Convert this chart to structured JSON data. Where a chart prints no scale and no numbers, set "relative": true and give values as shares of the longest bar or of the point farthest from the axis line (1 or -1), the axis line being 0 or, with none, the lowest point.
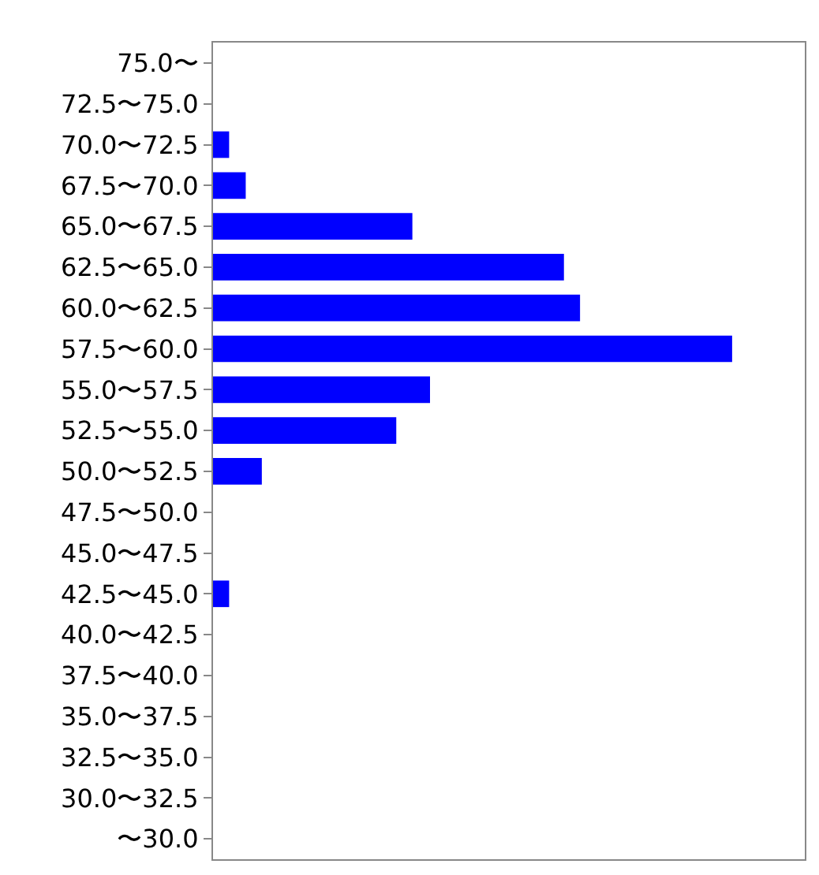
{
  "chart_data": {
    "type": "bar",
    "orientation": "horizontal",
    "relative": true,
    "categories": [
      "75.0〜",
      "72.5〜75.0",
      "70.0〜72.5",
      "67.5〜70.0",
      "65.0〜67.5",
      "62.5〜65.0",
      "60.0〜62.5",
      "57.5〜60.0",
      "55.0〜57.5",
      "52.5〜55.0",
      "50.0〜52.5",
      "47.5〜50.0",
      "45.0〜47.5",
      "42.5〜45.0",
      "40.0〜42.5",
      "37.5〜40.0",
      "35.0〜37.5",
      "32.5〜35.0",
      "30.0〜32.5",
      "〜30.0"
    ],
    "values": [
      0,
      0,
      0.031,
      0.063,
      0.384,
      0.676,
      0.707,
      1,
      0.418,
      0.353,
      0.094,
      0,
      0,
      0.031,
      0,
      0,
      0,
      0,
      0,
      0
    ],
    "color": "#0000ff",
    "legend": false
  }
}
